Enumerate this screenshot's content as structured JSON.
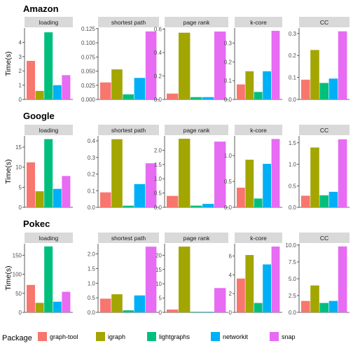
{
  "legend": {
    "title": "Package",
    "items": [
      {
        "name": "graph-tool",
        "color": "#F8766D"
      },
      {
        "name": "igraph",
        "color": "#A3A500"
      },
      {
        "name": "lightgraphs",
        "color": "#00BF7D"
      },
      {
        "name": "networkit",
        "color": "#00B0F6"
      },
      {
        "name": "snap",
        "color": "#E76BF3"
      }
    ]
  },
  "chart_data": [
    {
      "type": "bar",
      "title": "Amazon",
      "ylabel": "Time(s)",
      "categories": [
        "graph-tool",
        "igraph",
        "lightgraphs",
        "networkit",
        "snap"
      ],
      "panels": [
        {
          "name": "loading",
          "ylim": [
            0,
            5
          ],
          "ticks": [
            0,
            1,
            2,
            3,
            4
          ],
          "tick_labels": [
            "0",
            "1",
            "2",
            "3",
            "4"
          ],
          "values": [
            2.7,
            0.6,
            4.7,
            1.0,
            1.7
          ]
        },
        {
          "name": "shortest path",
          "ylim": [
            0,
            0.126
          ],
          "ticks": [
            0,
            0.025,
            0.05,
            0.075,
            0.1,
            0.125
          ],
          "tick_labels": [
            "0.000",
            "0.025",
            "0.050",
            "0.075",
            "0.100",
            "0.125"
          ],
          "values": [
            0.03,
            0.053,
            0.009,
            0.038,
            0.12
          ]
        },
        {
          "name": "page rank",
          "ylim": [
            0,
            0.61
          ],
          "ticks": [
            0,
            0.2,
            0.4,
            0.6
          ],
          "tick_labels": [
            "0.0",
            "0.2",
            "0.4",
            "0.6"
          ],
          "values": [
            0.05,
            0.57,
            0.02,
            0.02,
            0.58
          ]
        },
        {
          "name": "k-core",
          "ylim": [
            0,
            0.38
          ],
          "ticks": [
            0,
            0.1,
            0.2,
            0.3
          ],
          "tick_labels": [
            "0.0",
            "0.1",
            "0.2",
            "0.3"
          ],
          "values": [
            0.08,
            0.15,
            0.04,
            0.15,
            0.365
          ]
        },
        {
          "name": "CC",
          "ylim": [
            0,
            0.325
          ],
          "ticks": [
            0,
            0.1,
            0.2,
            0.3
          ],
          "tick_labels": [
            "0.0",
            "0.1",
            "0.2",
            "0.3"
          ],
          "values": [
            0.09,
            0.225,
            0.075,
            0.095,
            0.31
          ]
        }
      ]
    },
    {
      "type": "bar",
      "title": "Google",
      "ylabel": "Time(s)",
      "categories": [
        "graph-tool",
        "igraph",
        "lightgraphs",
        "networkit",
        "snap"
      ],
      "panels": [
        {
          "name": "loading",
          "ylim": [
            0,
            17.8
          ],
          "ticks": [
            0,
            5,
            10,
            15
          ],
          "tick_labels": [
            "0",
            "5",
            "10",
            "15"
          ],
          "values": [
            11.2,
            4.0,
            17.0,
            4.6,
            7.8
          ]
        },
        {
          "name": "shortest path",
          "ylim": [
            0,
            0.43
          ],
          "ticks": [
            0,
            0.1,
            0.2,
            0.3,
            0.4
          ],
          "tick_labels": [
            "0.0",
            "0.1",
            "0.2",
            "0.3",
            "0.4"
          ],
          "values": [
            0.09,
            0.41,
            0.01,
            0.14,
            0.265
          ]
        },
        {
          "name": "page rank",
          "ylim": [
            0,
            2.5
          ],
          "ticks": [
            0,
            0.5,
            1.0,
            1.5,
            2.0
          ],
          "tick_labels": [
            "0.0",
            "0.5",
            "1.0",
            "1.5",
            "2.0"
          ],
          "values": [
            0.4,
            2.4,
            0.06,
            0.12,
            2.3
          ]
        },
        {
          "name": "k-core",
          "ylim": [
            0,
            1.38
          ],
          "ticks": [
            0,
            0.5,
            1.0
          ],
          "tick_labels": [
            "0.0",
            "0.5",
            "1.0"
          ],
          "values": [
            0.38,
            0.92,
            0.17,
            0.84,
            1.32
          ]
        },
        {
          "name": "CC",
          "ylim": [
            0,
            1.66
          ],
          "ticks": [
            0,
            0.5,
            1.0,
            1.5
          ],
          "tick_labels": [
            "0.0",
            "0.5",
            "1.0",
            "1.5"
          ],
          "values": [
            0.27,
            1.39,
            0.28,
            0.36,
            1.58
          ]
        }
      ]
    },
    {
      "type": "bar",
      "title": "Pokec",
      "ylabel": "Time(s)",
      "categories": [
        "graph-tool",
        "igraph",
        "lightgraphs",
        "networkit",
        "snap"
      ],
      "panels": [
        {
          "name": "loading",
          "ylim": [
            0,
            180
          ],
          "ticks": [
            0,
            50,
            100,
            150
          ],
          "tick_labels": [
            "0",
            "50",
            "100",
            "150"
          ],
          "values": [
            72,
            25,
            173,
            28,
            54
          ]
        },
        {
          "name": "shortest path",
          "ylim": [
            0,
            2.35
          ],
          "ticks": [
            0,
            0.5,
            1.0,
            1.5,
            2.0
          ],
          "tick_labels": [
            "0.0",
            "0.5",
            "1.0",
            "1.5",
            "2.0"
          ],
          "values": [
            0.47,
            0.62,
            0.07,
            0.58,
            2.25
          ]
        },
        {
          "name": "page rank",
          "ylim": [
            0,
            24
          ],
          "ticks": [
            0,
            5,
            10,
            15,
            20
          ],
          "tick_labels": [
            "0",
            "5",
            "10",
            "15",
            "20"
          ],
          "values": [
            1.0,
            23.0,
            0.2,
            0.2,
            8.5
          ]
        },
        {
          "name": "k-core",
          "ylim": [
            0,
            7.3
          ],
          "ticks": [
            0,
            2,
            4,
            6
          ],
          "tick_labels": [
            "0",
            "2",
            "4",
            "6"
          ],
          "values": [
            3.6,
            6.1,
            1.0,
            5.1,
            7.0
          ]
        },
        {
          "name": "CC",
          "ylim": [
            0,
            10.2
          ],
          "ticks": [
            0,
            2.5,
            5.0,
            7.5,
            10.0
          ],
          "tick_labels": [
            "0.0",
            "2.5",
            "5.0",
            "7.5",
            "10.0"
          ],
          "values": [
            1.7,
            4.0,
            1.4,
            1.7,
            9.8
          ]
        }
      ]
    }
  ]
}
